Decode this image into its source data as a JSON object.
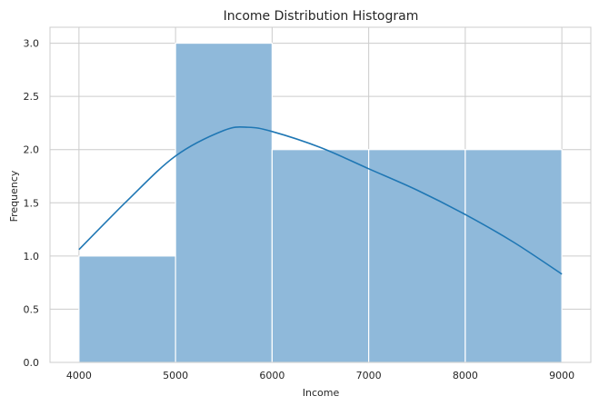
{
  "chart_data": {
    "type": "bar",
    "title": "Income Distribution Histogram",
    "xlabel": "Income",
    "ylabel": "Frequency",
    "bins": [
      {
        "start": 4000,
        "end": 5000,
        "count": 1
      },
      {
        "start": 5000,
        "end": 6000,
        "count": 3
      },
      {
        "start": 6000,
        "end": 7000,
        "count": 2
      },
      {
        "start": 7000,
        "end": 8000,
        "count": 2
      },
      {
        "start": 8000,
        "end": 9000,
        "count": 2
      }
    ],
    "kde": {
      "x": [
        4000,
        4500,
        5000,
        5500,
        5750,
        6000,
        6500,
        7000,
        7500,
        8000,
        8500,
        9000
      ],
      "y": [
        1.06,
        1.52,
        1.94,
        2.18,
        2.21,
        2.17,
        2.02,
        1.82,
        1.62,
        1.39,
        1.13,
        0.83
      ]
    },
    "xticks": [
      "4000",
      "5000",
      "6000",
      "7000",
      "8000",
      "9000"
    ],
    "yticks": [
      "0.0",
      "0.5",
      "1.0",
      "1.5",
      "2.0",
      "2.5",
      "3.0"
    ],
    "xlim": [
      3700,
      9300
    ],
    "ylim": [
      0,
      3.15
    ],
    "grid": true,
    "colors": {
      "bar_fill": "#8fb9da",
      "bar_edge": "#ffffff",
      "kde_line": "#1f77b4",
      "grid": "#cccccc",
      "spine": "#cccccc"
    }
  }
}
